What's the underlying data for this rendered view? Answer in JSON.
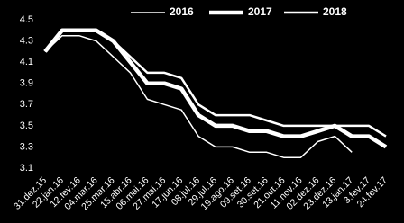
{
  "chart_data": {
    "type": "line",
    "categories": [
      "31.dez.15",
      "22.jan.16",
      "12.fev.16",
      "04.mar.16",
      "25.mar.16",
      "15.abr.16",
      "06.mai.16",
      "27.mai.16",
      "17.jun.16",
      "08.jul.16",
      "29.jul.16",
      "19.ago.16",
      "09.set.16",
      "30.set.16",
      "21.out.16",
      "11.nov.16",
      "02.dez.16",
      "23.dez.16",
      "13.jan.17",
      "3.fev.17",
      "24.fev.17"
    ],
    "series": [
      {
        "name": "2016",
        "color": "#ffffff",
        "values": [
          4.2,
          4.35,
          4.35,
          4.3,
          4.15,
          4.0,
          3.75,
          3.7,
          3.65,
          3.4,
          3.3,
          3.3,
          3.25,
          3.25,
          3.2,
          3.2,
          3.35,
          3.4,
          3.25,
          null,
          null
        ]
      },
      {
        "name": "2017",
        "color": "#ffffff",
        "values": [
          4.2,
          4.4,
          4.4,
          4.4,
          4.3,
          4.1,
          3.9,
          3.9,
          3.85,
          3.6,
          3.5,
          3.5,
          3.45,
          3.45,
          3.4,
          3.4,
          3.45,
          3.5,
          3.4,
          3.4,
          3.3
        ]
      },
      {
        "name": "2018",
        "color": "#ffffff",
        "values": [
          4.2,
          4.4,
          4.4,
          4.4,
          4.3,
          4.15,
          4.0,
          4.0,
          3.95,
          3.7,
          3.6,
          3.6,
          3.6,
          3.55,
          3.5,
          3.5,
          3.5,
          3.5,
          3.5,
          3.5,
          3.4
        ]
      }
    ],
    "ylim": [
      3.1,
      4.5
    ],
    "yticks": [
      3.1,
      3.3,
      3.5,
      3.7,
      3.9,
      4.1,
      4.3,
      4.5
    ],
    "legend": "top"
  }
}
